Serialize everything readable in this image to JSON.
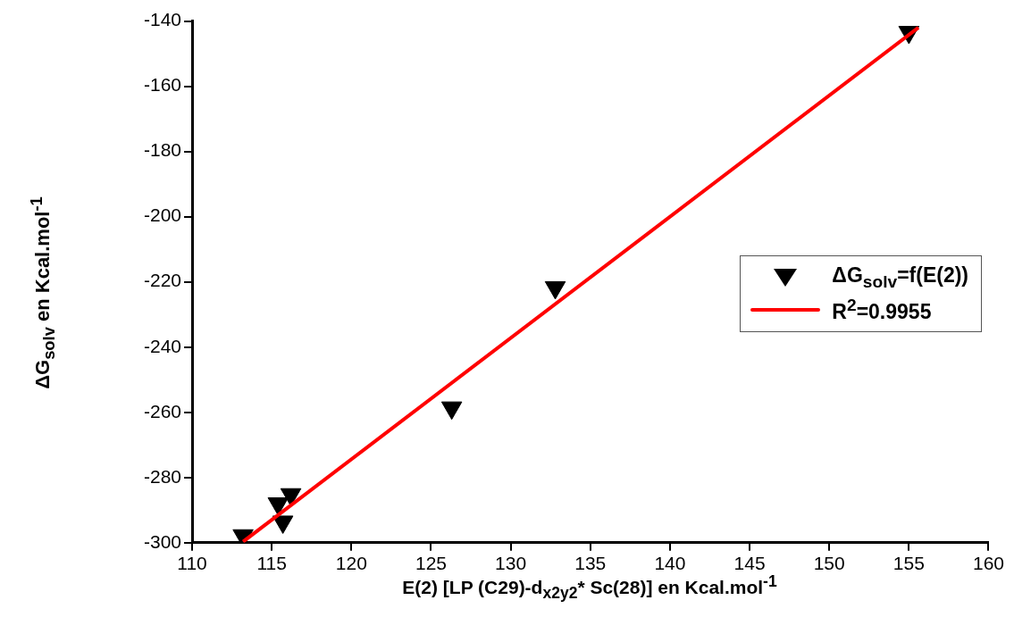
{
  "chart_data": {
    "type": "scatter",
    "xlabel": "E(2) [LP (C29)-d$_{x2y2}$* Sc(28)] en Kcal.mol$^{-1}$",
    "ylabel": "ΔG$_{solv}$ en Kcal.mol$^{-1}$",
    "x": [
      113.2,
      115.4,
      115.7,
      116.2,
      126.3,
      132.8,
      155
    ],
    "xlim": [
      110,
      160
    ],
    "ylim": [
      -300,
      -140
    ],
    "xticks": [
      110,
      115,
      120,
      125,
      130,
      135,
      140,
      145,
      150,
      155,
      160
    ],
    "yticks": [
      -300,
      -280,
      -260,
      -240,
      -220,
      -200,
      -180,
      -160,
      -140
    ],
    "grid": false,
    "legend": "right",
    "marker": "triangle",
    "series": [
      {
        "name": "ΔG$_{solv}$=f(E(2))",
        "color": "#000000",
        "values": [
          -297.8,
          -288,
          -293.6,
          -285.2,
          -258.6,
          -221.7,
          -143.4
        ]
      },
      {
        "name": "R$^{2}$=0.9955",
        "type": "line",
        "color": "#ff0000",
        "x": [
          113.2,
          155.6
        ],
        "values": [
          -299.7,
          -142
        ],
        "marker": "none",
        "line_style": "solid"
      }
    ]
  }
}
